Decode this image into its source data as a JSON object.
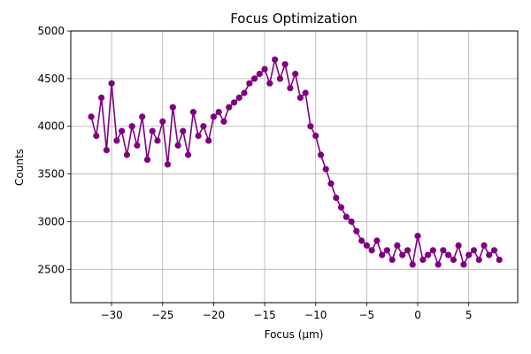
{
  "chart_data": {
    "type": "line",
    "title": "Focus Optimization",
    "xlabel": "Focus (μm)",
    "ylabel": "Counts",
    "xlim": [
      -34.0,
      9.8
    ],
    "ylim": [
      2150,
      5000
    ],
    "grid": true,
    "x_ticks": [
      -30,
      -25,
      -20,
      -15,
      -10,
      -5,
      0,
      5
    ],
    "y_ticks": [
      2500,
      3000,
      3500,
      4000,
      4500,
      5000
    ],
    "series": [
      {
        "color": "#800080",
        "marker": "circle",
        "x": [
          -32,
          -31.5,
          -31,
          -30.5,
          -30,
          -29.5,
          -29,
          -28.5,
          -28,
          -27.5,
          -27,
          -26.5,
          -26,
          -25.5,
          -25,
          -24.5,
          -24,
          -23.5,
          -23,
          -22.5,
          -22,
          -21.5,
          -21,
          -20.5,
          -20,
          -19.5,
          -19,
          -18.5,
          -18,
          -17.5,
          -17,
          -16.5,
          -16,
          -15.5,
          -15,
          -14.5,
          -14,
          -13.5,
          -13,
          -12.5,
          -12,
          -11.5,
          -11,
          -10.5,
          -10,
          -9.5,
          -9,
          -8.5,
          -8,
          -7.5,
          -7,
          -6.5,
          -6,
          -5.5,
          -5,
          -4.5,
          -4,
          -3.5,
          -3,
          -2.5,
          -2,
          -1.5,
          -1,
          -0.5,
          0,
          0.5,
          1,
          1.5,
          2,
          2.5,
          3,
          3.5,
          4,
          4.5,
          5,
          5.5,
          6,
          6.5,
          7,
          7.5,
          8
        ],
        "y": [
          4100,
          3900,
          4300,
          3750,
          4450,
          3850,
          3950,
          3700,
          4000,
          3800,
          4100,
          3650,
          3950,
          3850,
          4050,
          3600,
          4200,
          3800,
          3950,
          3700,
          4150,
          3900,
          4000,
          3850,
          4100,
          4150,
          4050,
          4200,
          4250,
          4300,
          4350,
          4450,
          4500,
          4550,
          4600,
          4450,
          4700,
          4500,
          4650,
          4400,
          4550,
          4300,
          4350,
          4000,
          3900,
          3700,
          3550,
          3400,
          3250,
          3150,
          3050,
          3000,
          2900,
          2800,
          2750,
          2700,
          2800,
          2650,
          2700,
          2600,
          2750,
          2650,
          2700,
          2550,
          2850,
          2600,
          2650,
          2700,
          2550,
          2700,
          2650,
          2600,
          2750,
          2550,
          2650,
          2700,
          2600,
          2750,
          2650,
          2700,
          2600
        ]
      }
    ]
  }
}
